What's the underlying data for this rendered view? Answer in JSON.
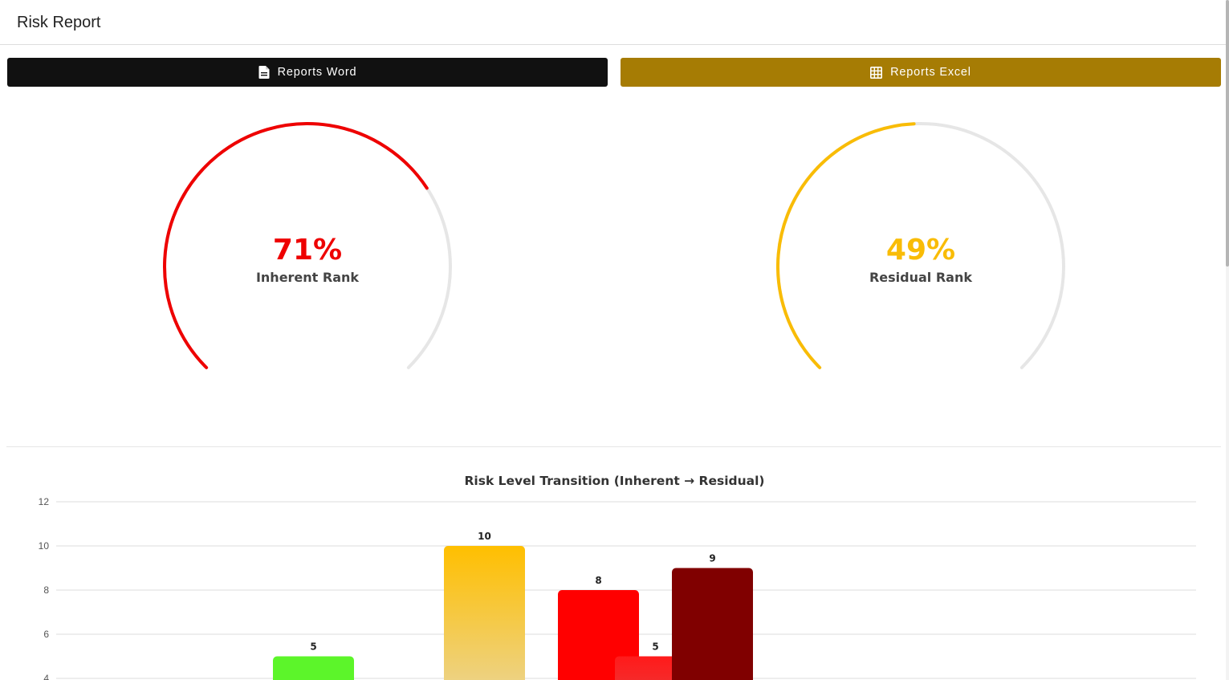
{
  "header": {
    "title": "Risk Report"
  },
  "buttons": {
    "word_label": "Reports Word",
    "excel_label": "Reports Excel"
  },
  "gauges": {
    "inherent": {
      "value": 71,
      "value_text": "71%",
      "label": "Inherent Rank",
      "color": "#ee0000"
    },
    "residual": {
      "value": 49,
      "value_text": "49%",
      "label": "Residual Rank",
      "color": "#f9bc06"
    },
    "track_color": "#e6e6e6"
  },
  "colors": {
    "word_button": "#111111",
    "excel_button": "#a67c04"
  },
  "chart_data": {
    "type": "bar",
    "title": "Risk Level Transition (Inherent → Residual)",
    "xlabel": "",
    "ylabel": "",
    "ylim": [
      0,
      12
    ],
    "yticks": [
      4,
      6,
      8,
      10,
      12
    ],
    "grid": true,
    "bars": [
      {
        "slot": 4,
        "value": 5,
        "color_top": "#5cf52a",
        "color_bottom": "#5cf52a"
      },
      {
        "slot": 7,
        "value": 10,
        "color_top": "#ffbf00",
        "color_bottom": "#ecd38a"
      },
      {
        "slot": 9,
        "value": 8,
        "color_top": "#ff0000",
        "color_bottom": "#ff0000"
      },
      {
        "slot": 10,
        "value": 5,
        "color_top": "#ff1a1a",
        "color_bottom": "#f23030"
      },
      {
        "slot": 11,
        "value": 9,
        "color_top": "#800000",
        "color_bottom": "#800000"
      }
    ]
  }
}
